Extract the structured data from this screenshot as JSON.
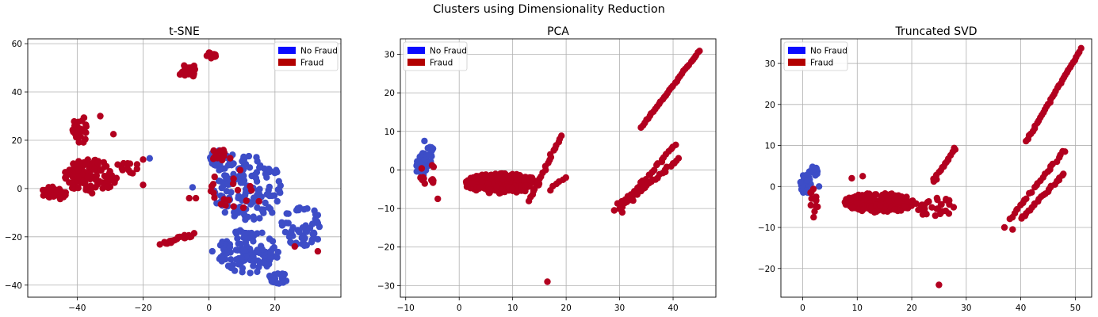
{
  "figure": {
    "suptitle": "Clusters using Dimensionality Reduction"
  },
  "chart_data": [
    {
      "type": "scatter",
      "title": "t-SNE",
      "xlabel": "",
      "ylabel": "",
      "xlim": [
        -55,
        40
      ],
      "ylim": [
        -45,
        62
      ],
      "xticks": [
        -40,
        -20,
        0,
        20
      ],
      "yticks": [
        -40,
        -20,
        0,
        20,
        40,
        60
      ],
      "grid": true,
      "legend": {
        "placement": "top-right",
        "entries": [
          {
            "label": "No Fraud",
            "color": "#0a0aff"
          },
          {
            "label": "Fraud",
            "color": "#b20000"
          }
        ]
      },
      "series": [
        {
          "name": "No Fraud",
          "color": "#3d4dc7",
          "clusters": [
            {
              "shape": "ellipse",
              "center": [
                12,
                0
              ],
              "radius": [
                11,
                14
              ],
              "count": 150
            },
            {
              "shape": "ellipse",
              "center": [
                12,
                -26
              ],
              "radius": [
                10,
                9
              ],
              "count": 110
            },
            {
              "shape": "ellipse",
              "center": [
                28,
                -15
              ],
              "radius": [
                6,
                9
              ],
              "count": 50
            },
            {
              "shape": "ellipse",
              "center": [
                4,
                12
              ],
              "radius": [
                4,
                4
              ],
              "count": 25
            },
            {
              "shape": "ellipse",
              "center": [
                21,
                -37
              ],
              "radius": [
                3,
                2.5
              ],
              "count": 18
            }
          ],
          "points": [
            [
              -18,
              12.5
            ],
            [
              -5,
              0.5
            ],
            [
              1,
              -26
            ],
            [
              33,
              -11
            ],
            [
              33,
              -21
            ]
          ]
        },
        {
          "name": "Fraud",
          "color": "#b2001f",
          "clusters": [
            {
              "shape": "ellipse",
              "center": [
                -36,
                5
              ],
              "radius": [
                8,
                7
              ],
              "count": 110
            },
            {
              "shape": "ellipse",
              "center": [
                -47,
                -2
              ],
              "radius": [
                4,
                3
              ],
              "count": 30
            },
            {
              "shape": "ellipse",
              "center": [
                -39,
                24
              ],
              "radius": [
                2.5,
                6
              ],
              "count": 30
            },
            {
              "shape": "ellipse",
              "center": [
                -25,
                9
              ],
              "radius": [
                4,
                3
              ],
              "count": 12
            },
            {
              "shape": "ellipse",
              "center": [
                -6,
                48
              ],
              "radius": [
                3,
                4
              ],
              "count": 25
            },
            {
              "shape": "ellipse",
              "center": [
                0.5,
                55
              ],
              "radius": [
                2,
                1.5
              ],
              "count": 10
            },
            {
              "shape": "line",
              "from": [
                -14,
                -23
              ],
              "to": [
                -5,
                -19
              ],
              "count": 22,
              "jitter": [
                1,
                0.8
              ]
            },
            {
              "shape": "ellipse",
              "center": [
                4,
                14
              ],
              "radius": [
                4,
                2.5
              ],
              "count": 15
            },
            {
              "shape": "ellipse",
              "center": [
                8,
                0
              ],
              "radius": [
                9,
                10
              ],
              "count": 20
            }
          ],
          "points": [
            [
              -33,
              30
            ],
            [
              -29,
              22.5
            ],
            [
              -20,
              1.5
            ],
            [
              -20,
              12
            ],
            [
              -6,
              -4
            ],
            [
              -4,
              -4
            ],
            [
              26,
              -24
            ],
            [
              33,
              -26
            ]
          ]
        }
      ]
    },
    {
      "type": "scatter",
      "title": "PCA",
      "xlabel": "",
      "ylabel": "",
      "xlim": [
        -11,
        48
      ],
      "ylim": [
        -33,
        34
      ],
      "xticks": [
        -10,
        0,
        10,
        20,
        30,
        40
      ],
      "yticks": [
        -30,
        -20,
        -10,
        0,
        10,
        20,
        30
      ],
      "grid": true,
      "legend": {
        "placement": "top-left",
        "entries": [
          {
            "label": "No Fraud",
            "color": "#0a0aff"
          },
          {
            "label": "Fraud",
            "color": "#b20000"
          }
        ]
      },
      "series": [
        {
          "name": "No Fraud",
          "color": "#3d4dc7",
          "clusters": [
            {
              "shape": "ellipse",
              "center": [
                -7,
                1.5
              ],
              "radius": [
                1.2,
                3
              ],
              "count": 45
            },
            {
              "shape": "ellipse",
              "center": [
                -5.5,
                3.5
              ],
              "radius": [
                1,
                2.5
              ],
              "count": 15
            }
          ],
          "points": [
            [
              -6.5,
              7.5
            ]
          ]
        },
        {
          "name": "Fraud",
          "color": "#b2001f",
          "clusters": [
            {
              "shape": "ellipse",
              "center": [
                8,
                -3.5
              ],
              "radius": [
                7,
                2.6
              ],
              "count": 230
            },
            {
              "shape": "ellipse",
              "center": [
                -6,
                -1
              ],
              "radius": [
                1.5,
                3.5
              ],
              "count": 14
            },
            {
              "shape": "line",
              "from": [
                13,
                -8
              ],
              "to": [
                19,
                9
              ],
              "count": 22,
              "jitter": [
                0.3,
                0.4
              ]
            },
            {
              "shape": "line",
              "from": [
                17,
                -5
              ],
              "to": [
                20,
                -2
              ],
              "count": 6,
              "jitter": [
                0.3,
                0.4
              ]
            },
            {
              "shape": "line",
              "from": [
                34,
                11
              ],
              "to": [
                45,
                31
              ],
              "count": 34,
              "jitter": [
                0.1,
                0.2
              ]
            },
            {
              "shape": "line",
              "from": [
                30,
                -10
              ],
              "to": [
                40,
                6
              ],
              "count": 26,
              "jitter": [
                0.3,
                0.4
              ]
            },
            {
              "shape": "line",
              "from": [
                32,
                -8
              ],
              "to": [
                41,
                3
              ],
              "count": 24,
              "jitter": [
                0.3,
                0.4
              ]
            },
            {
              "shape": "line",
              "from": [
                30,
                -9
              ],
              "to": [
                35,
                -4
              ],
              "count": 10,
              "jitter": [
                0.4,
                0.4
              ]
            }
          ],
          "points": [
            [
              16.5,
              -29
            ],
            [
              29,
              -10.5
            ],
            [
              30.5,
              -11
            ],
            [
              -4,
              -7.5
            ],
            [
              40.5,
              6.5
            ]
          ]
        }
      ]
    },
    {
      "type": "scatter",
      "title": "Truncated SVD",
      "xlabel": "",
      "ylabel": "",
      "xlim": [
        -4,
        53
      ],
      "ylim": [
        -27,
        36
      ],
      "xticks": [
        0,
        10,
        20,
        30,
        40,
        50
      ],
      "yticks": [
        -20,
        -10,
        0,
        10,
        20,
        30
      ],
      "grid": true,
      "legend": {
        "placement": "top-left",
        "entries": [
          {
            "label": "No Fraud",
            "color": "#0a0aff"
          },
          {
            "label": "Fraud",
            "color": "#b20000"
          }
        ]
      },
      "series": [
        {
          "name": "No Fraud",
          "color": "#3d4dc7",
          "clusters": [
            {
              "shape": "ellipse",
              "center": [
                0.5,
                0.5
              ],
              "radius": [
                1,
                2.5
              ],
              "count": 40
            },
            {
              "shape": "ellipse",
              "center": [
                2,
                3.5
              ],
              "radius": [
                0.8,
                1.5
              ],
              "count": 12
            }
          ],
          "points": [
            [
              3,
              0
            ]
          ]
        },
        {
          "name": "Fraud",
          "color": "#b2001f",
          "clusters": [
            {
              "shape": "ellipse",
              "center": [
                14,
                -4
              ],
              "radius": [
                6.5,
                2.4
              ],
              "count": 210
            },
            {
              "shape": "ellipse",
              "center": [
                2,
                -3.5
              ],
              "radius": [
                0.9,
                3
              ],
              "count": 12
            },
            {
              "shape": "ellipse",
              "center": [
                24,
                -5
              ],
              "radius": [
                4,
                2.5
              ],
              "count": 30
            },
            {
              "shape": "line",
              "from": [
                24,
                1
              ],
              "to": [
                28,
                9.5
              ],
              "count": 16,
              "jitter": [
                0.3,
                0.4
              ]
            },
            {
              "shape": "line",
              "from": [
                41,
                11
              ],
              "to": [
                51,
                33.5
              ],
              "count": 36,
              "jitter": [
                0.1,
                0.2
              ]
            },
            {
              "shape": "line",
              "from": [
                38,
                -8
              ],
              "to": [
                48,
                9
              ],
              "count": 26,
              "jitter": [
                0.3,
                0.4
              ]
            },
            {
              "shape": "line",
              "from": [
                40,
                -8
              ],
              "to": [
                48,
                3
              ],
              "count": 24,
              "jitter": [
                0.3,
                0.4
              ]
            }
          ],
          "points": [
            [
              25,
              -24
            ],
            [
              37,
              -10
            ],
            [
              38.5,
              -10.5
            ],
            [
              2,
              -7.5
            ],
            [
              9,
              2
            ],
            [
              11,
              2.5
            ]
          ]
        }
      ]
    }
  ]
}
